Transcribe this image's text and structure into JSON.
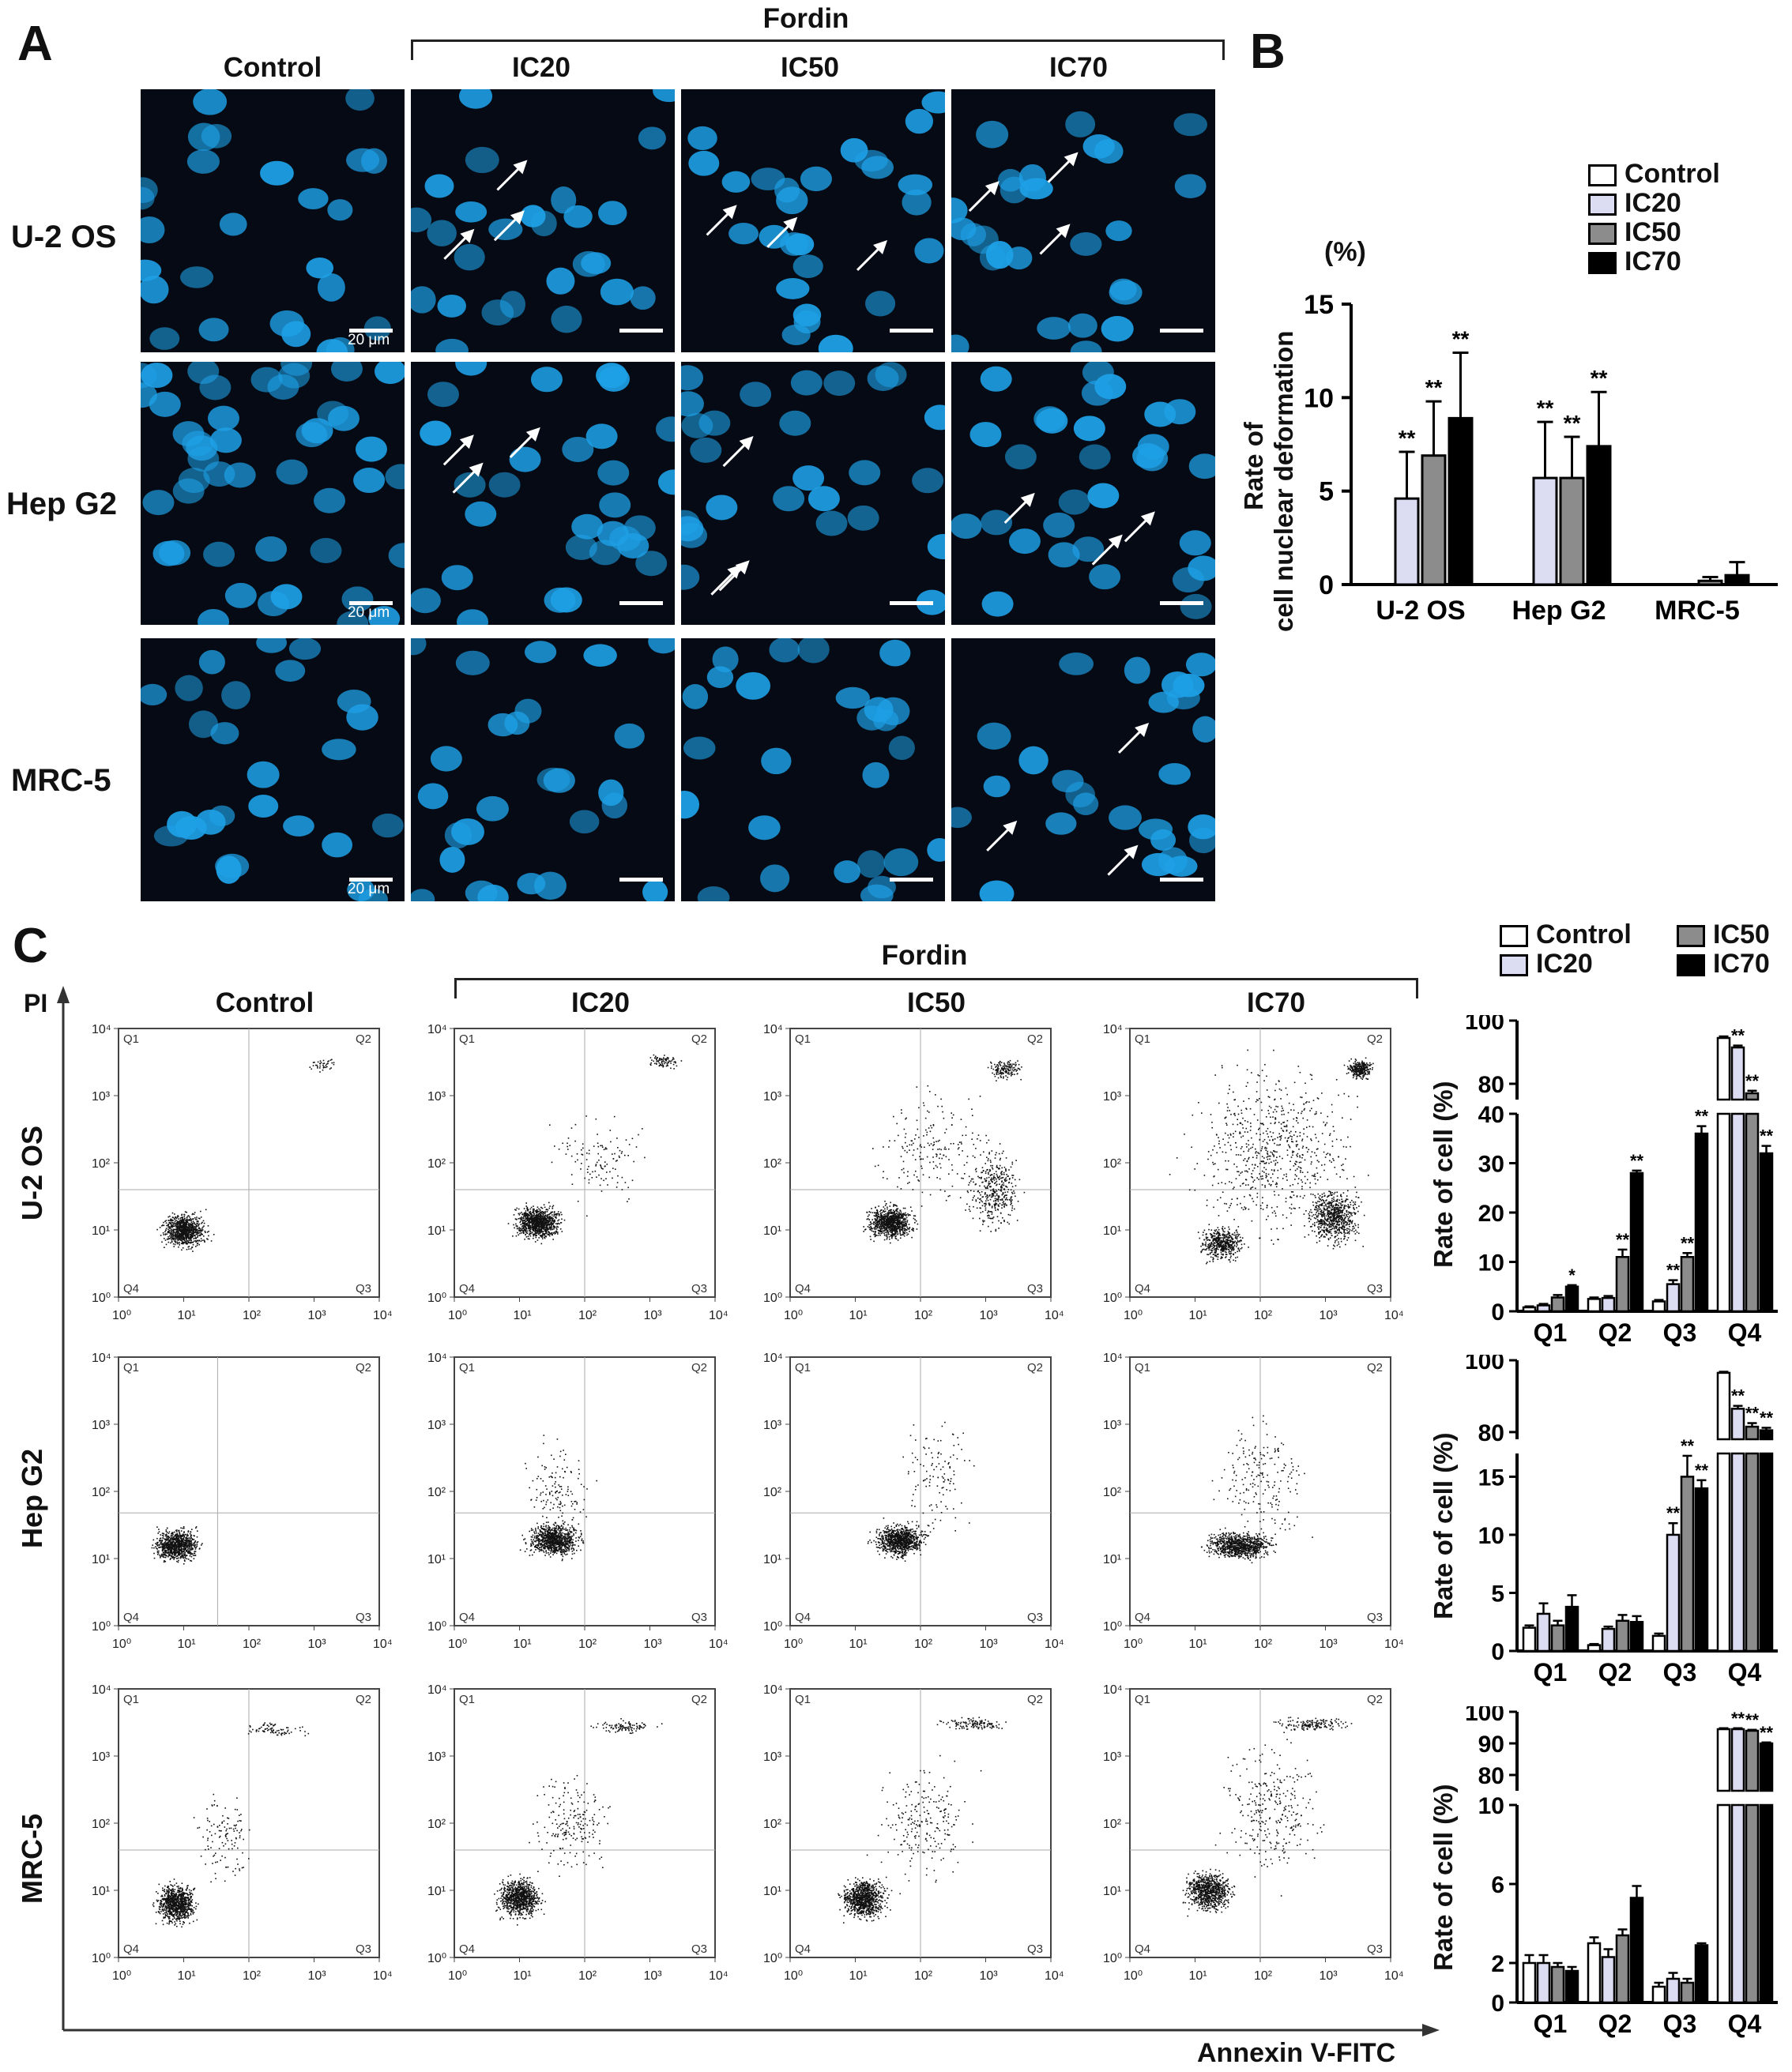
{
  "panels": {
    "a": "A",
    "b": "B",
    "c": "C"
  },
  "panel_a": {
    "group_label": "Fordin",
    "columns": [
      "Control",
      "IC20",
      "IC50",
      "IC70"
    ],
    "rows": [
      "U-2 OS",
      "Hep G2",
      "MRC-5"
    ],
    "scale_bar": "20 μm"
  },
  "panel_b": {
    "unit": "(%)",
    "ylabel_line1": "Rate of",
    "ylabel_line2": "cell nuclear deformation",
    "legend": [
      "Control",
      "IC20",
      "IC50",
      "IC70"
    ],
    "significance": "**"
  },
  "panel_c": {
    "group_label": "Fordin",
    "columns": [
      "Control",
      "IC20",
      "IC50",
      "IC70"
    ],
    "rows": [
      "U-2 OS",
      "Hep G2",
      "MRC-5"
    ],
    "y_axis": "PI",
    "x_axis": "Annexin V-FITC",
    "quadrants": [
      "Q1",
      "Q2",
      "Q3",
      "Q4"
    ],
    "legend": [
      "Control",
      "IC20",
      "IC50",
      "IC70"
    ],
    "bar_ylabel": "Rate of cell (%)"
  },
  "colors": {
    "control": "#ffffff",
    "ic20": "#dcdcf2",
    "ic50": "#8c8c8c",
    "ic70": "#000000",
    "nuclei": "#1ea0e6"
  },
  "chart_data": [
    {
      "type": "bar",
      "title": "",
      "ylabel": "Rate of cell nuclear deformation (%)",
      "categories": [
        "U-2 OS",
        "Hep G2",
        "MRC-5"
      ],
      "ylim": [
        0,
        15
      ],
      "yticks": [
        0,
        5,
        10,
        15
      ],
      "series": [
        {
          "name": "Control",
          "values": [
            0,
            0,
            0
          ],
          "errors": [
            0,
            0,
            0
          ]
        },
        {
          "name": "IC20",
          "values": [
            4.6,
            5.7,
            0
          ],
          "errors": [
            2.5,
            3.0,
            0
          ]
        },
        {
          "name": "IC50",
          "values": [
            6.9,
            5.7,
            0.2
          ],
          "errors": [
            2.9,
            2.2,
            0.2
          ]
        },
        {
          "name": "IC70",
          "values": [
            8.9,
            7.4,
            0.5
          ],
          "errors": [
            3.5,
            2.9,
            0.7
          ]
        }
      ],
      "stars": [
        [
          "",
          "**",
          "**",
          "**"
        ],
        [
          "",
          "**",
          "**",
          "**"
        ],
        [
          "",
          "",
          "",
          ""
        ]
      ]
    },
    {
      "type": "bar",
      "title": "U-2 OS",
      "ylabel": "Rate of cell (%)",
      "categories": [
        "Q1",
        "Q2",
        "Q3",
        "Q4"
      ],
      "broken_axis": {
        "lower": [
          0,
          40
        ],
        "upper": [
          75,
          100
        ]
      },
      "lower_ticks": [
        0,
        10,
        20,
        30,
        40
      ],
      "upper_ticks": [
        80,
        100
      ],
      "series": [
        {
          "name": "Control",
          "values": [
            0.8,
            2.5,
            2.0,
            94.5
          ],
          "errors": [
            0.2,
            0.3,
            0.3,
            0.5
          ]
        },
        {
          "name": "IC20",
          "values": [
            1.2,
            2.7,
            5.5,
            91.5
          ],
          "errors": [
            0.3,
            0.4,
            0.8,
            0.6
          ]
        },
        {
          "name": "IC50",
          "values": [
            2.8,
            11.0,
            11.0,
            77.0
          ],
          "errors": [
            0.5,
            1.5,
            0.8,
            0.8
          ]
        },
        {
          "name": "IC70",
          "values": [
            5.0,
            28.0,
            36.0,
            32.0
          ],
          "errors": [
            0.3,
            0.5,
            1.5,
            1.5
          ]
        }
      ],
      "stars": [
        [
          "",
          "",
          "",
          "*"
        ],
        [
          "",
          "",
          "**",
          "**"
        ],
        [
          "",
          "**",
          "**",
          "**"
        ],
        [
          "",
          "**",
          "**",
          "**"
        ]
      ]
    },
    {
      "type": "bar",
      "title": "Hep G2",
      "ylabel": "Rate of cell (%)",
      "categories": [
        "Q1",
        "Q2",
        "Q3",
        "Q4"
      ],
      "broken_axis": {
        "lower": [
          0,
          17
        ],
        "upper": [
          78,
          100
        ]
      },
      "lower_ticks": [
        0,
        5,
        10,
        15
      ],
      "upper_ticks": [
        80,
        100
      ],
      "series": [
        {
          "name": "Control",
          "values": [
            2.0,
            0.5,
            1.3,
            96.5
          ],
          "errors": [
            0.2,
            0.1,
            0.2,
            0.3
          ]
        },
        {
          "name": "IC20",
          "values": [
            3.2,
            1.9,
            10.0,
            86.5
          ],
          "errors": [
            0.9,
            0.2,
            1.0,
            0.8
          ]
        },
        {
          "name": "IC50",
          "values": [
            2.2,
            2.6,
            15.0,
            81.5
          ],
          "errors": [
            0.4,
            0.5,
            1.8,
            1.0
          ]
        },
        {
          "name": "IC70",
          "values": [
            3.8,
            2.5,
            14.0,
            80.5
          ],
          "errors": [
            1.0,
            0.5,
            0.7,
            0.7
          ]
        }
      ],
      "stars": [
        [
          "",
          "",
          "",
          ""
        ],
        [
          "",
          "",
          "",
          ""
        ],
        [
          "",
          "**",
          "**",
          "**"
        ],
        [
          "",
          "**",
          "**",
          "**"
        ]
      ]
    },
    {
      "type": "bar",
      "title": "MRC-5",
      "ylabel": "Rate of cell (%)",
      "categories": [
        "Q1",
        "Q2",
        "Q3",
        "Q4"
      ],
      "broken_axis": {
        "lower": [
          0,
          10
        ],
        "upper": [
          75,
          100
        ]
      },
      "lower_ticks": [
        0,
        2,
        6,
        10
      ],
      "upper_ticks": [
        80,
        90,
        100
      ],
      "series": [
        {
          "name": "Control",
          "values": [
            2.0,
            3.0,
            0.8,
            94.5
          ],
          "errors": [
            0.4,
            0.3,
            0.2,
            0.3
          ]
        },
        {
          "name": "IC20",
          "values": [
            2.0,
            2.3,
            1.2,
            94.5
          ],
          "errors": [
            0.4,
            0.4,
            0.3,
            0.3
          ]
        },
        {
          "name": "IC50",
          "values": [
            1.8,
            3.4,
            1.0,
            94.0
          ],
          "errors": [
            0.2,
            0.3,
            0.2,
            0.3
          ]
        },
        {
          "name": "IC70",
          "values": [
            1.6,
            5.3,
            2.9,
            90.0
          ],
          "errors": [
            0.2,
            0.6,
            0.1,
            0.3
          ]
        }
      ],
      "stars": [
        [
          "",
          "",
          "",
          ""
        ],
        [
          "",
          "",
          "",
          ""
        ],
        [
          "",
          "",
          "",
          ""
        ],
        [
          "",
          "**",
          "**",
          "**"
        ]
      ]
    }
  ]
}
